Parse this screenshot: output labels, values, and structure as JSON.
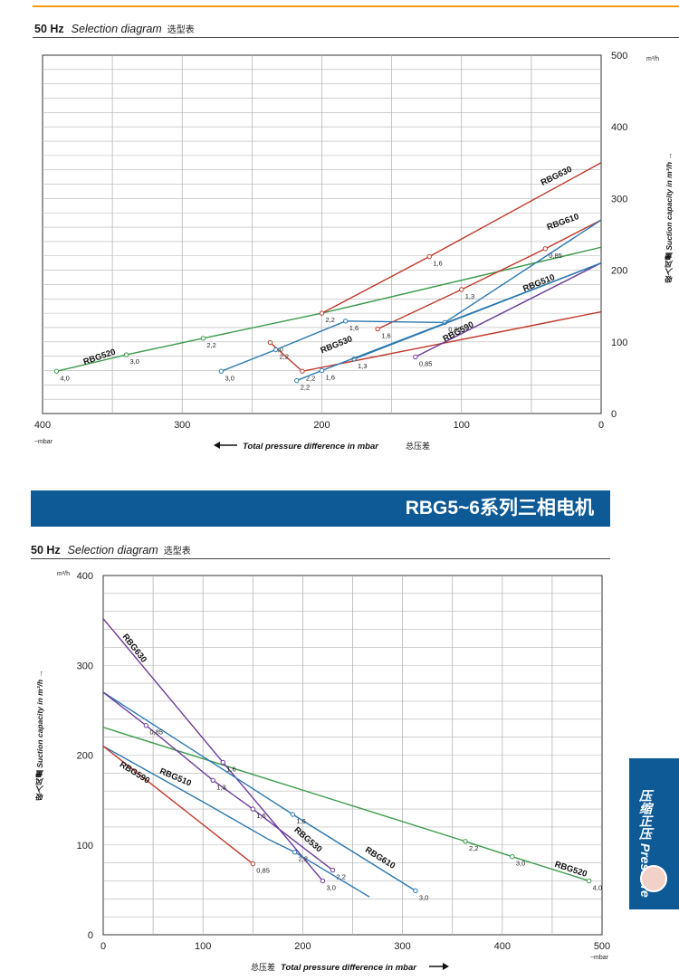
{
  "chart1": {
    "hz": "50 Hz",
    "title": "Selection diagram",
    "title_cn": "选型表",
    "yunit": "m³/h",
    "xunit": "~mbar",
    "xlabel": "Total pressure difference in mbar",
    "xlabel_cn": "总压差",
    "ylabel": "Suction capacity in m³/h",
    "ylabel_cn": "吸入风量"
  },
  "chart2": {
    "hz": "50 Hz",
    "title": "Selection diagram",
    "title_cn": "选型表",
    "yunit": "m³/h",
    "xunit": "~mbar",
    "xlabel": "Total pressure difference in mbar",
    "xlabel_cn": "总压差",
    "ylabel": "Suction capacity in m³/h",
    "ylabel_cn": "吸入风量"
  },
  "banner": "RBG5~6系列三相电机",
  "sidetab": {
    "cn": "压缩正压",
    "en": "Pressure"
  },
  "colors": {
    "green": "#3a9a4a",
    "red": "#c0392b",
    "blue": "#2a78b0",
    "purple": "#6b3a9a",
    "banner": "#0d5a96",
    "accent": "#f29a12"
  },
  "chart_data": [
    {
      "type": "line",
      "title": "Selection diagram",
      "xlabel": "Total pressure difference in mbar",
      "ylabel": "Suction capacity in m³/h",
      "xlim": [
        400,
        0
      ],
      "ylim": [
        0,
        500
      ],
      "x_ticks": [
        400,
        300,
        200,
        100,
        0
      ],
      "y_ticks": [
        0,
        100,
        200,
        300,
        400,
        500
      ],
      "grid": true,
      "series": [
        {
          "name": "RBG520",
          "color": "#3a9a4a",
          "x": [
            390,
            340,
            285,
            200,
            0
          ],
          "y": [
            59,
            82,
            105,
            140,
            232
          ],
          "labels": [
            "4,0",
            "3,0",
            "2,2",
            "",
            ""
          ]
        },
        {
          "name": "RBG530",
          "color": "#c0392b",
          "x": [
            237,
            214,
            0
          ],
          "y": [
            99,
            59,
            142
          ],
          "labels": [
            "3,0",
            "2,2",
            ""
          ]
        },
        {
          "name": "RBG630",
          "color": "#c0392b",
          "x": [
            200,
            123,
            0
          ],
          "y": [
            140,
            219,
            350
          ],
          "labels": [
            "2,2",
            "1,6",
            ""
          ]
        },
        {
          "name": "RBG610",
          "color": "#c0392b",
          "x": [
            160,
            100,
            40,
            0
          ],
          "y": [
            118,
            173,
            230,
            270
          ],
          "labels": [
            "1,6",
            "1,3",
            "0,85",
            ""
          ]
        },
        {
          "name": "RBG590",
          "color": "#6b3a9a",
          "x": [
            133,
            0
          ],
          "y": [
            79,
            210
          ],
          "labels": [
            "0,85",
            ""
          ]
        },
        {
          "name": "RBG510",
          "color": "#2a78b0",
          "x": [
            177,
            0
          ],
          "y": [
            76,
            210
          ],
          "labels": [
            "1,3",
            ""
          ]
        },
        {
          "name": "",
          "color": "#2a78b0",
          "x": [
            272,
            233,
            183,
            112,
            0
          ],
          "y": [
            59,
            89,
            129,
            127,
            270
          ],
          "labels": [
            "3,0",
            "2,2",
            "1,6",
            "0,85",
            ""
          ]
        },
        {
          "name": "",
          "color": "#2a78b0",
          "x": [
            218,
            200,
            0
          ],
          "y": [
            46,
            60,
            210
          ],
          "labels": [
            "2,2",
            "1,6",
            ""
          ]
        }
      ]
    },
    {
      "type": "line",
      "title": "Selection diagram",
      "xlabel": "Total pressure difference in mbar",
      "ylabel": "Suction capacity in m³/h",
      "xlim": [
        0,
        500
      ],
      "ylim": [
        0,
        400
      ],
      "x_ticks": [
        0,
        100,
        200,
        300,
        400,
        500
      ],
      "y_ticks": [
        0,
        100,
        200,
        300,
        400
      ],
      "grid": true,
      "series": [
        {
          "name": "RBG520",
          "color": "#3a9a4a",
          "x": [
            0,
            363,
            410,
            487
          ],
          "y": [
            231,
            104,
            87,
            60
          ],
          "labels": [
            "",
            "2,2",
            "3,0",
            "4,0"
          ]
        },
        {
          "name": "RBG630",
          "color": "#6b3a9a",
          "x": [
            0,
            120,
            220
          ],
          "y": [
            352,
            192,
            60
          ],
          "labels": [
            "",
            "1,6",
            "3,0"
          ]
        },
        {
          "name": "RBG610",
          "color": "#2a78b0",
          "x": [
            0,
            190,
            313
          ],
          "y": [
            270,
            134,
            49
          ],
          "labels": [
            "",
            "1,6",
            "3,0"
          ]
        },
        {
          "name": "RBG530",
          "color": "#6b3a9a",
          "x": [
            0,
            43,
            110,
            150,
            230
          ],
          "y": [
            270,
            233,
            172,
            140,
            72
          ],
          "labels": [
            "",
            "0,85",
            "1,3",
            "1,6",
            "2,2"
          ]
        },
        {
          "name": "RBG510",
          "color": "#2a78b0",
          "x": [
            0,
            100,
            166,
            192,
            267
          ],
          "y": [
            210,
            148,
            106,
            92,
            42
          ],
          "labels": [
            "",
            "",
            "",
            "2,2",
            ""
          ]
        },
        {
          "name": "RBG590",
          "color": "#c0392b",
          "x": [
            0,
            150
          ],
          "y": [
            210,
            79
          ],
          "labels": [
            "",
            "0,85"
          ]
        }
      ]
    }
  ]
}
